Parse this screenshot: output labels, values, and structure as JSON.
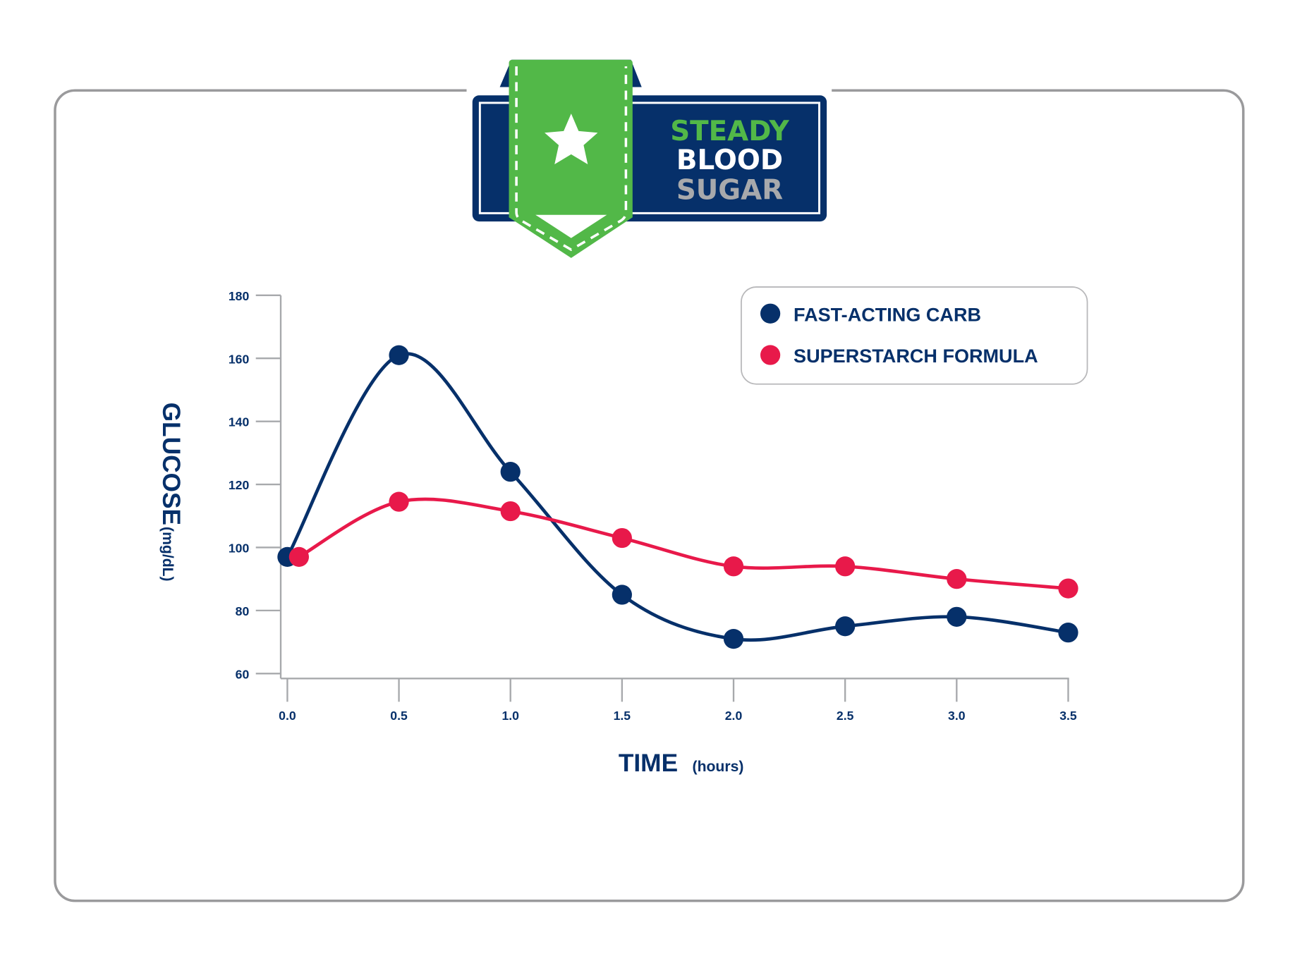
{
  "badge": {
    "line1": "STEADY",
    "line2": "BLOOD",
    "line3": "SUGAR",
    "icon": "star-icon"
  },
  "colors": {
    "navy": "#06306a",
    "red": "#e8194a",
    "green": "#52b848",
    "gray": "#a7a9ac",
    "frame": "#9a9a9c"
  },
  "chart_data": {
    "type": "line",
    "title": "STEADY BLOOD SUGAR",
    "xlabel": "TIME",
    "xlabel_unit": "(hours)",
    "ylabel": "GLUCOSE",
    "ylabel_unit": "(mg/dL)",
    "x": [
      0.0,
      0.5,
      1.0,
      1.5,
      2.0,
      2.5,
      3.0,
      3.5
    ],
    "x_tick_labels": [
      "0.0",
      "0.5",
      "1.0",
      "1.5",
      "2.0",
      "2.5",
      "3.0",
      "3.5"
    ],
    "y_ticks": [
      60,
      80,
      100,
      120,
      140,
      160,
      180
    ],
    "y_tick_labels": [
      "60",
      "80",
      "100",
      "120",
      "140",
      "160",
      "180"
    ],
    "xlim": [
      0,
      3.5
    ],
    "ylim": [
      60,
      180
    ],
    "grid": false,
    "legend_position": "top-right",
    "series": [
      {
        "name": "FAST-ACTING CARB",
        "color": "#06306a",
        "values": [
          97,
          161,
          124,
          85,
          71,
          75,
          78,
          73
        ]
      },
      {
        "name": "SUPERSTARCH FORMULA",
        "color": "#e8194a",
        "values": [
          97,
          114.5,
          111.5,
          103,
          94,
          94,
          90,
          87
        ]
      }
    ]
  }
}
